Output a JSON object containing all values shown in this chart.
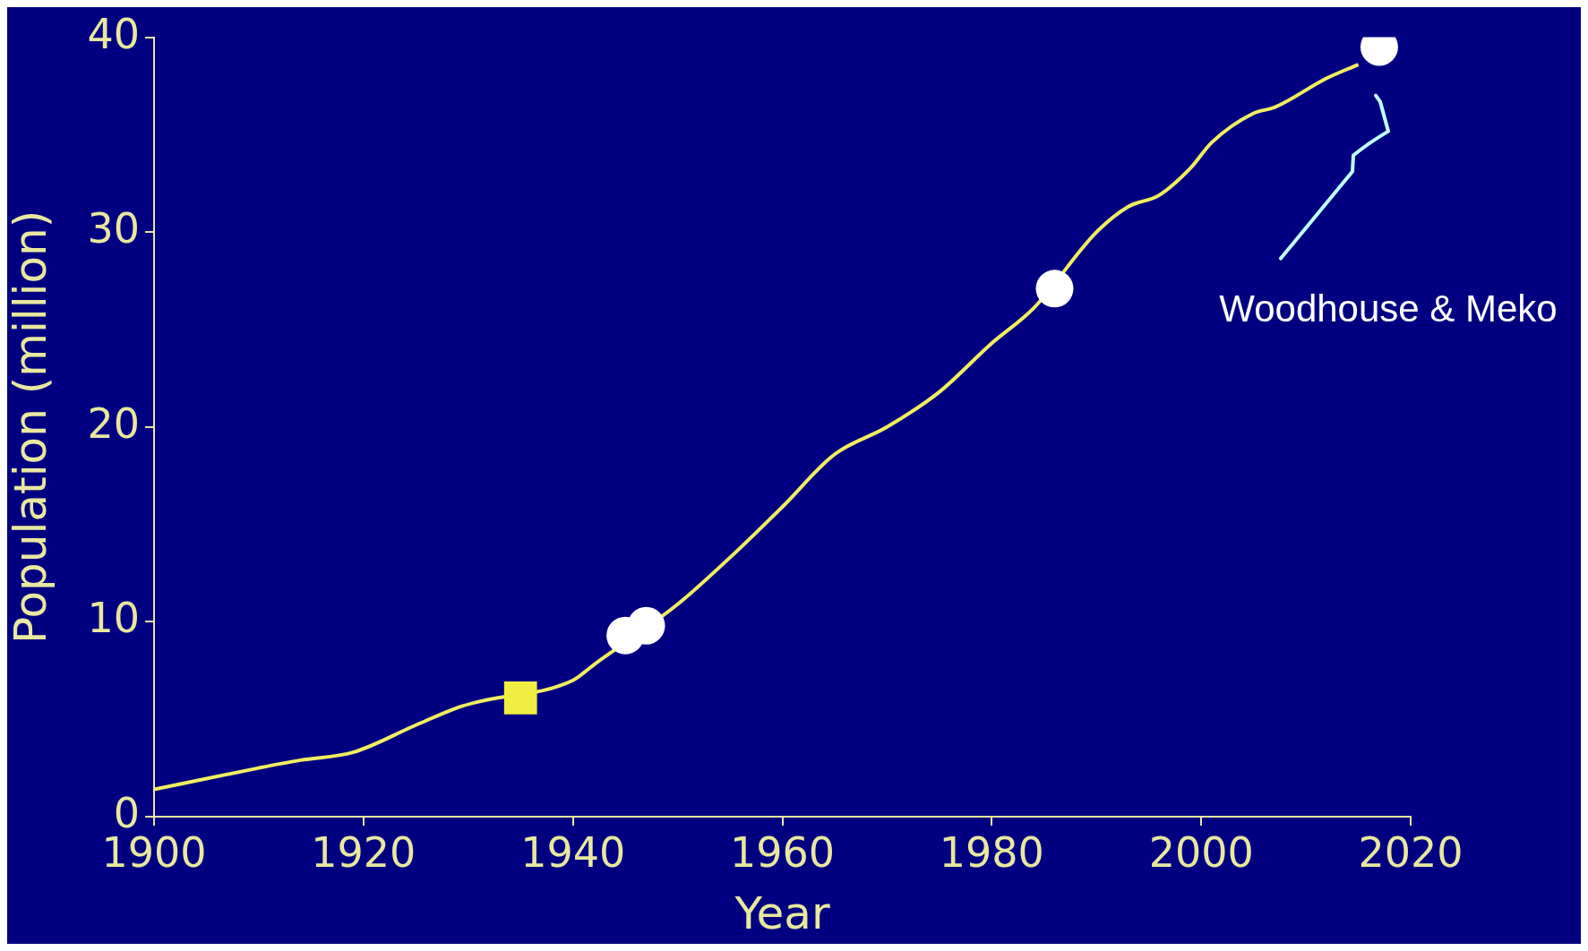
{
  "chart_data": {
    "type": "line",
    "xlabel": "Year",
    "ylabel": "Population (million)",
    "x": [
      1900,
      1910,
      1914,
      1919,
      1925,
      1929,
      1931,
      1940,
      1942,
      1950,
      1955,
      1960,
      1965,
      1970,
      1975,
      1980,
      1984,
      1990,
      1993,
      1996,
      1999,
      2001,
      2005,
      2007,
      2012,
      2015
    ],
    "series": [
      {
        "color": "#f0ee60",
        "values": [
          1.4,
          2.5,
          2.9,
          3.3,
          4.7,
          5.6,
          5.9,
          7.0,
          7.8,
          10.9,
          13.3,
          15.9,
          18.6,
          20.0,
          21.8,
          24.3,
          26.1,
          30.0,
          31.3,
          31.9,
          33.3,
          34.6,
          36.1,
          36.4,
          37.9,
          38.6
        ]
      },
      {
        "type": "scatter",
        "marker": "square",
        "color": "#f0ee40",
        "x": [
          1935
        ],
        "values": [
          6.1
        ]
      },
      {
        "type": "scatter",
        "marker": "circle",
        "color": "#ffffff",
        "x": [
          1945,
          1947,
          1986,
          2017
        ],
        "values": [
          9.3,
          9.8,
          27.1,
          39.5
        ]
      }
    ],
    "xlim": [
      1900,
      2020
    ],
    "xticks": [
      1900,
      1920,
      1940,
      1960,
      1980,
      2000,
      2020
    ],
    "ylim": [
      0,
      40
    ],
    "yticks": [
      0,
      10,
      20,
      30,
      40
    ],
    "grid": false,
    "legend": false,
    "annotations": [
      "Woodhouse & Meko"
    ]
  }
}
